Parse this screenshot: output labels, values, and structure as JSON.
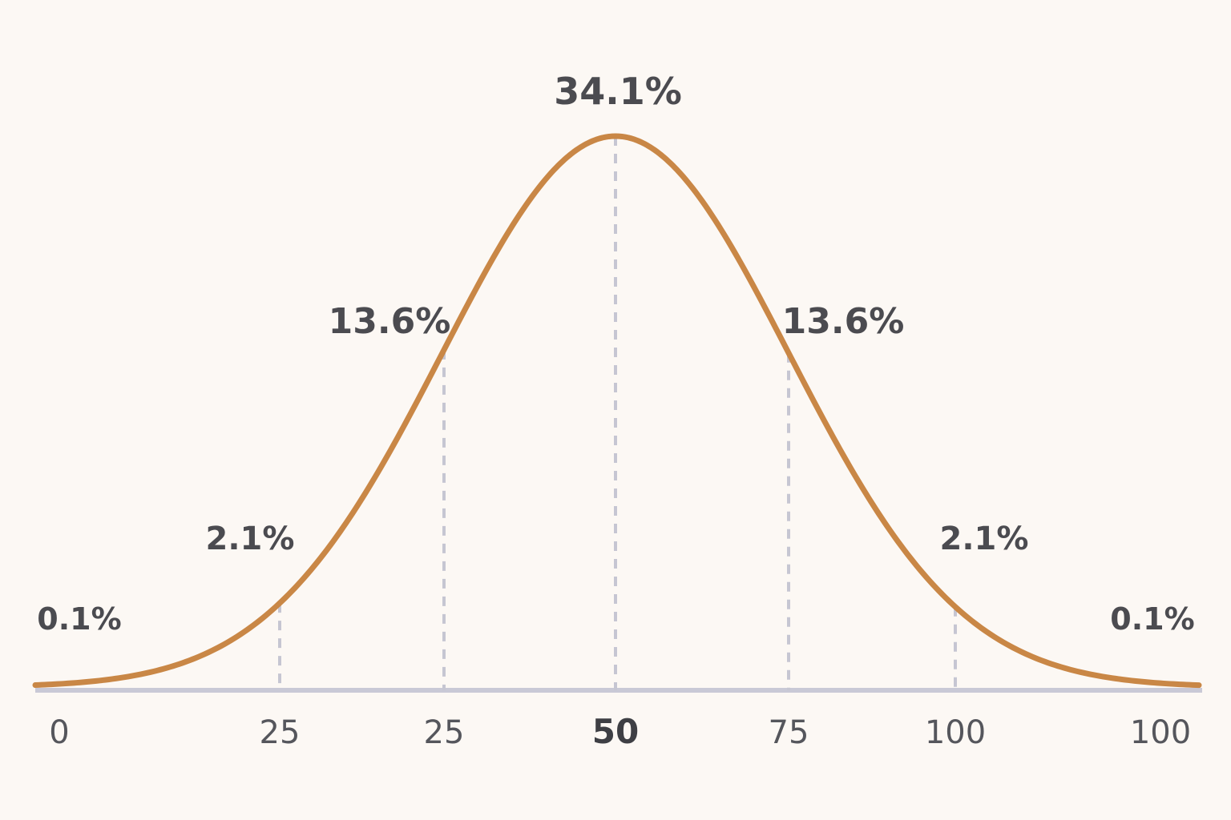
{
  "chart_data": {
    "type": "line",
    "title": "",
    "xlabel": "",
    "ylabel": "",
    "grid": false,
    "legend": "none",
    "curve": {
      "kind": "normal-distribution",
      "center_tick_index": 3,
      "color": "#c98746"
    },
    "x_ticks": [
      {
        "label": "0",
        "bold": false,
        "guide": false
      },
      {
        "label": "25",
        "bold": false,
        "guide": true
      },
      {
        "label": "25",
        "bold": false,
        "guide": true
      },
      {
        "label": "50",
        "bold": true,
        "guide": true
      },
      {
        "label": "75",
        "bold": false,
        "guide": true
      },
      {
        "label": "100",
        "bold": false,
        "guide": true
      },
      {
        "label": "100",
        "bold": false,
        "guide": false
      }
    ],
    "band_labels": [
      {
        "text": "0.1%",
        "tick_index": 0,
        "side": "left"
      },
      {
        "text": "2.1%",
        "tick_index": 1,
        "side": "left"
      },
      {
        "text": "13.6%",
        "tick_index": 2,
        "side": "left"
      },
      {
        "text": "34.1%",
        "tick_index": 3,
        "side": "top"
      },
      {
        "text": "13.6%",
        "tick_index": 4,
        "side": "right"
      },
      {
        "text": "2.1%",
        "tick_index": 5,
        "side": "right"
      },
      {
        "text": "0.1%",
        "tick_index": 6,
        "side": "right"
      }
    ],
    "colors": {
      "curve": "#c98746",
      "baseline": "#c9c9d6",
      "guide": "#c6c6d2",
      "text": "#4b4b50",
      "background": "#fcf8f4"
    }
  }
}
